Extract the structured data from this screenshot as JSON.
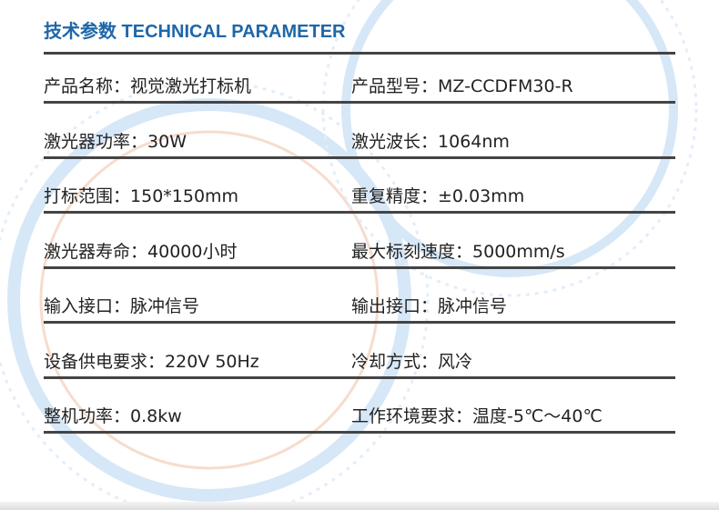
{
  "title": "技术参数 TECHNICAL PARAMETER",
  "colors": {
    "title": "#1f67a8",
    "rule": "#444444",
    "decor_blue": "#cfe3f6",
    "decor_peach": "#f6d8c8"
  },
  "rows": [
    [
      {
        "label": "产品名称：",
        "value": "视觉激光打标机"
      },
      {
        "label": "产品型号：",
        "value": "MZ-CCDFM30-R"
      }
    ],
    [
      {
        "label": "激光器功率：",
        "value": "30W"
      },
      {
        "label": "激光波长：",
        "value": "1064nm"
      }
    ],
    [
      {
        "label": "打标范围：",
        "value": "150*150mm"
      },
      {
        "label": "重复精度：",
        "value": "±0.03mm"
      }
    ],
    [
      {
        "label": "激光器寿命：",
        "value": "40000小时"
      },
      {
        "label": "最大标刻速度：",
        "value": "5000mm/s"
      }
    ],
    [
      {
        "label": "输入接口：",
        "value": "脉冲信号"
      },
      {
        "label": "输出接口：",
        "value": "脉冲信号"
      }
    ],
    [
      {
        "label": "设备供电要求：",
        "value": "220V 50Hz"
      },
      {
        "label": "冷却方式：",
        "value": "风冷"
      }
    ],
    [
      {
        "label": "整机功率：",
        "value": "0.8kw"
      },
      {
        "label": "工作环境要求：",
        "value": "温度-5℃～40℃"
      }
    ]
  ]
}
